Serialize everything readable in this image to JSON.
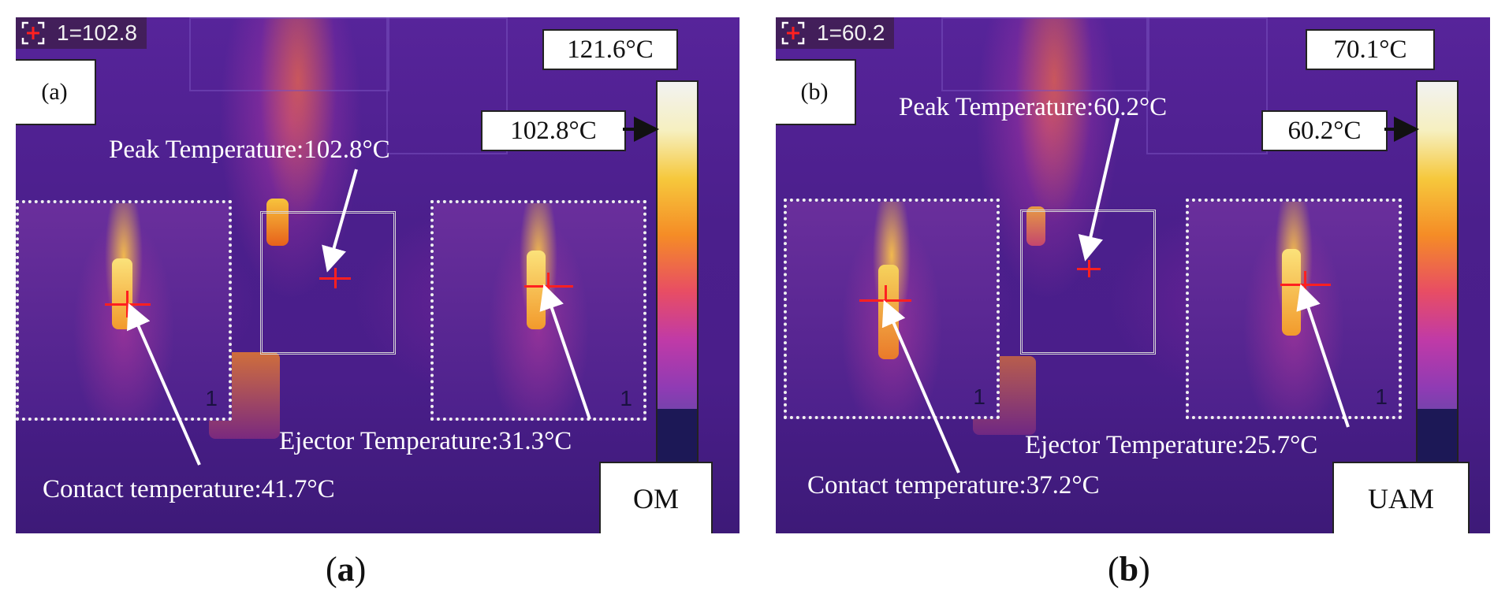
{
  "panels": [
    {
      "id": "a",
      "readout": "1=102.8",
      "label": "(a)",
      "scale_max": "121.6°C",
      "scale_marker": "102.8°C",
      "peak_label": "Peak Temperature:102.8°C",
      "ejector_label": "Ejector Temperature:31.3°C",
      "contact_label": "Contact temperature:41.7°C",
      "inset_digit_left": "1",
      "inset_digit_right": "1",
      "mode": "OM",
      "caption": "a"
    },
    {
      "id": "b",
      "readout": "1=60.2",
      "label": "(b)",
      "scale_max": "70.1°C",
      "scale_marker": "60.2°C",
      "peak_label": "Peak Temperature:60.2°C",
      "ejector_label": "Ejector Temperature:25.7°C",
      "contact_label": "Contact temperature:37.2°C",
      "inset_digit_left": "1",
      "inset_digit_right": "1",
      "mode": "UAM",
      "caption": "b"
    }
  ],
  "colors": {
    "background_purple": "#4a1f86",
    "cursor_red": "#ff2020",
    "annotation_white": "#ffffff"
  },
  "icons": [
    "crosshair-icon",
    "arrow-right-icon"
  ]
}
